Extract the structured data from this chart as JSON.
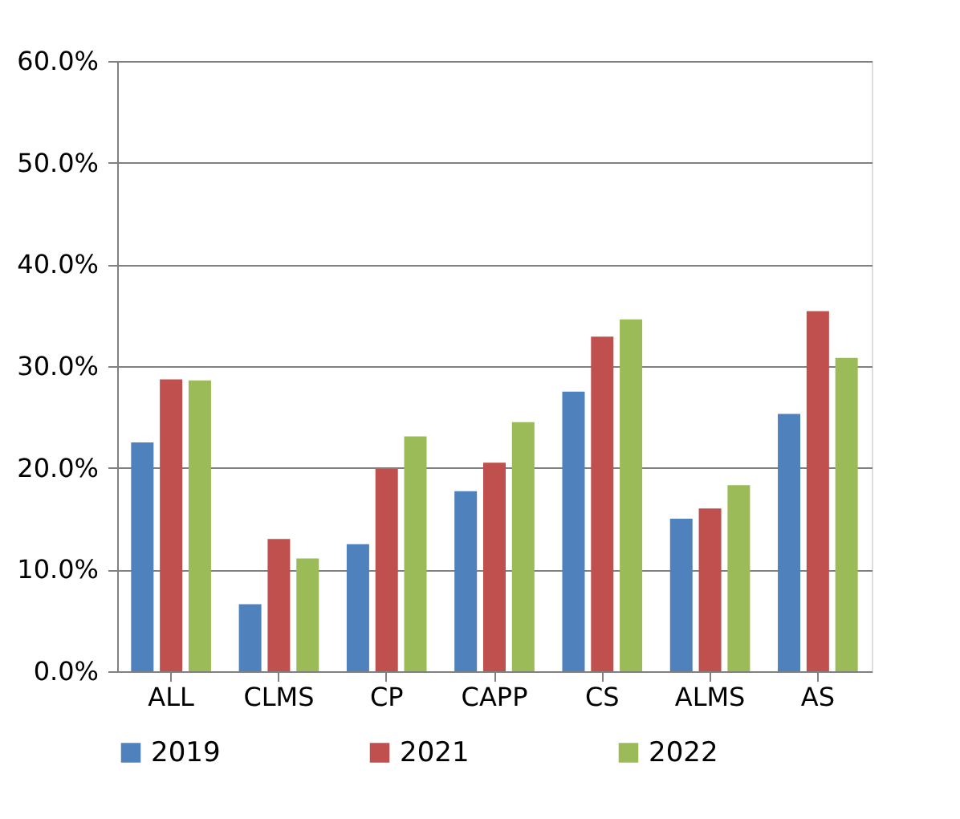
{
  "chart_data": {
    "type": "bar",
    "categories": [
      "ALL",
      "CLMS",
      "CP",
      "CAPP",
      "CS",
      "ALMS",
      "AS"
    ],
    "series": [
      {
        "name": "2019",
        "color": "#4f81bd",
        "values": [
          22.5,
          6.6,
          12.5,
          17.7,
          27.5,
          15.0,
          25.3
        ]
      },
      {
        "name": "2021",
        "color": "#c0504d",
        "values": [
          28.7,
          13.0,
          19.9,
          20.5,
          32.9,
          16.0,
          35.4
        ]
      },
      {
        "name": "2022",
        "color": "#9bbb59",
        "values": [
          28.6,
          11.1,
          23.1,
          24.5,
          34.6,
          18.3,
          30.8
        ]
      }
    ],
    "ylim": [
      0,
      60
    ],
    "yticks": [
      {
        "value": 0,
        "label": "0.0%"
      },
      {
        "value": 10,
        "label": "10.0%"
      },
      {
        "value": 20,
        "label": "20.0%"
      },
      {
        "value": 30,
        "label": "30.0%"
      },
      {
        "value": 40,
        "label": "40.0%"
      },
      {
        "value": 50,
        "label": "50.0%"
      },
      {
        "value": 60,
        "label": "60.0%"
      }
    ],
    "grid": "y",
    "legend": "bottom"
  }
}
